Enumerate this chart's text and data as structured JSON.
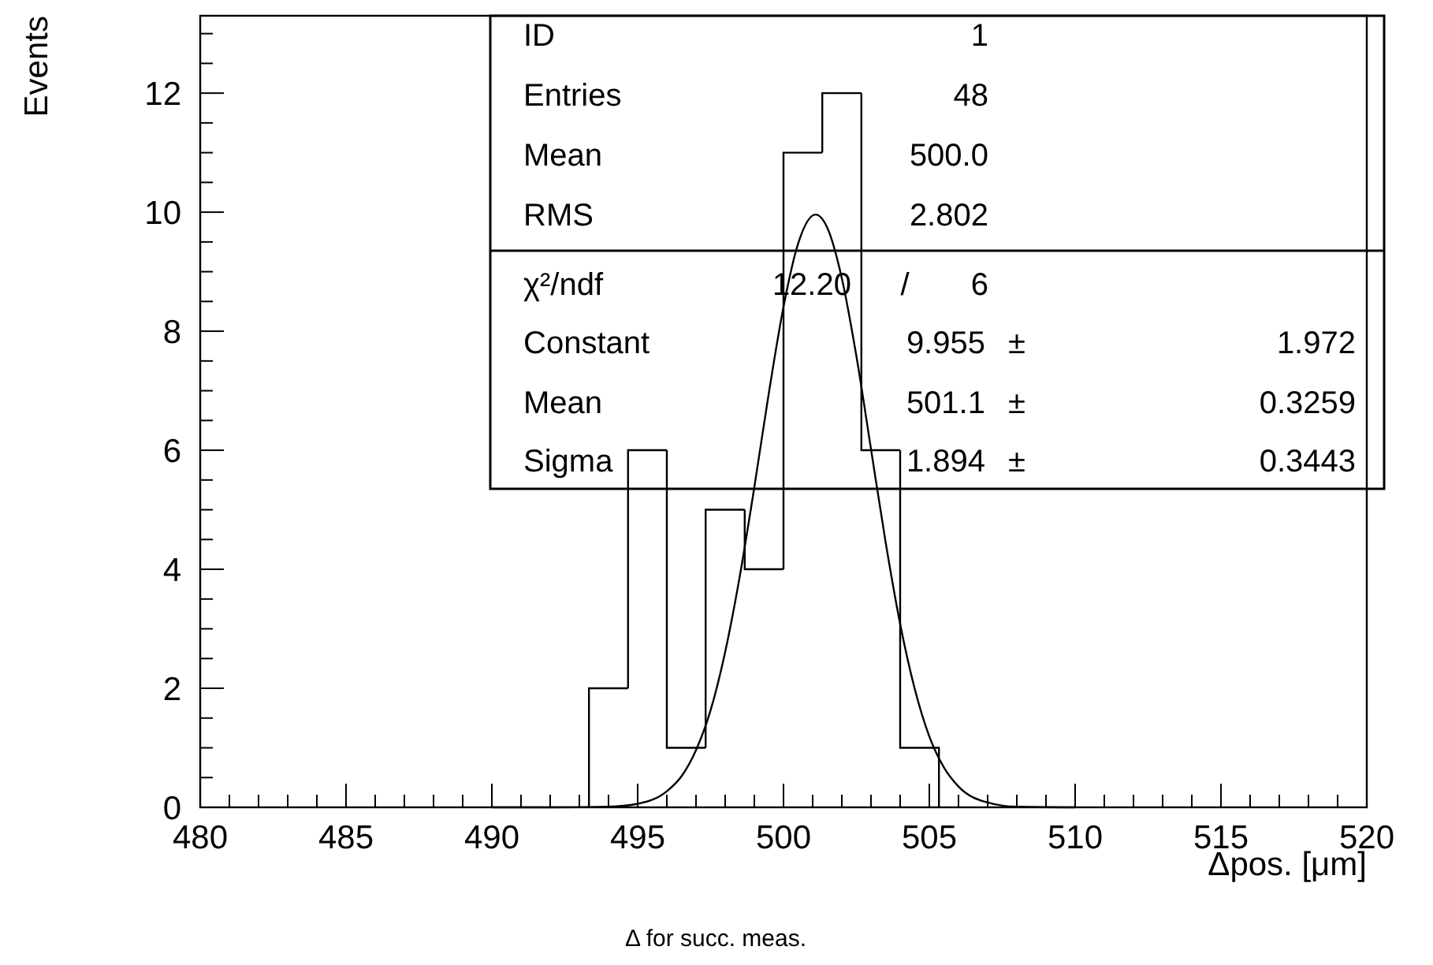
{
  "chart_data": {
    "type": "histogram",
    "xlabel": "Δpos. [μm]",
    "ylabel": "Events",
    "xlim": [
      480,
      520
    ],
    "ylim": [
      0,
      13.3
    ],
    "xticks": [
      480,
      {
        "value": 481,
        "label": null
      },
      {
        "value": 482,
        "label": null
      },
      {
        "value": 483,
        "label": null
      },
      {
        "value": 484,
        "label": null
      },
      485,
      {
        "value": 486,
        "label": null
      },
      {
        "value": 487,
        "label": null
      },
      {
        "value": 488,
        "label": null
      },
      {
        "value": 489,
        "label": null
      },
      490,
      {
        "value": 491,
        "label": null
      },
      {
        "value": 492,
        "label": null
      },
      {
        "value": 493,
        "label": null
      },
      {
        "value": 494,
        "label": null
      },
      495,
      {
        "value": 496,
        "label": null
      },
      {
        "value": 497,
        "label": null
      },
      {
        "value": 498,
        "label": null
      },
      {
        "value": 499,
        "label": null
      },
      500,
      {
        "value": 501,
        "label": null
      },
      {
        "value": 502,
        "label": null
      },
      {
        "value": 503,
        "label": null
      },
      {
        "value": 504,
        "label": null
      },
      505,
      {
        "value": 506,
        "label": null
      },
      {
        "value": 507,
        "label": null
      },
      {
        "value": 508,
        "label": null
      },
      {
        "value": 509,
        "label": null
      },
      510,
      {
        "value": 511,
        "label": null
      },
      {
        "value": 512,
        "label": null
      },
      {
        "value": 513,
        "label": null
      },
      {
        "value": 514,
        "label": null
      },
      515,
      {
        "value": 516,
        "label": null
      },
      {
        "value": 517,
        "label": null
      },
      {
        "value": 518,
        "label": null
      },
      {
        "value": 519,
        "label": null
      },
      520
    ],
    "yticks": [
      0,
      {
        "value": 0.5,
        "label": null
      },
      {
        "value": 1,
        "label": null
      },
      {
        "value": 1.5,
        "label": null
      },
      2,
      {
        "value": 2.5,
        "label": null
      },
      {
        "value": 3,
        "label": null
      },
      {
        "value": 3.5,
        "label": null
      },
      4,
      {
        "value": 4.5,
        "label": null
      },
      {
        "value": 5,
        "label": null
      },
      {
        "value": 5.5,
        "label": null
      },
      6,
      {
        "value": 6.5,
        "label": null
      },
      {
        "value": 7,
        "label": null
      },
      {
        "value": 7.5,
        "label": null
      },
      8,
      {
        "value": 8.5,
        "label": null
      },
      {
        "value": 9,
        "label": null
      },
      {
        "value": 9.5,
        "label": null
      },
      10,
      {
        "value": 10.5,
        "label": null
      },
      {
        "value": 11,
        "label": null
      },
      {
        "value": 11.5,
        "label": null
      },
      12,
      {
        "value": 12.5,
        "label": null
      },
      {
        "value": 13,
        "label": null
      }
    ],
    "grid": false,
    "series": [
      {
        "color": "#000000",
        "bins": [
          493.33,
          494.67,
          496,
          497.33,
          498.67,
          500,
          501.33,
          502.67,
          504,
          505.33
        ],
        "values": [
          2,
          6,
          1,
          5,
          4,
          11,
          12,
          6,
          1
        ]
      },
      {
        "type": "line",
        "color": "#000000",
        "x": [
          490,
          492,
          494,
          495,
          496,
          496.5,
          497,
          497.5,
          498,
          498.5,
          499,
          499.5,
          500,
          500.5,
          501.1,
          501.5,
          502,
          502.5,
          503,
          503.5,
          504,
          504.5,
          505,
          505.5,
          506,
          507,
          508,
          510
        ],
        "values": [
          0,
          0,
          0.01,
          0.06,
          0.27,
          0.52,
          0.96,
          1.63,
          2.61,
          3.88,
          5.38,
          6.97,
          8.41,
          9.47,
          9.96,
          9.74,
          8.89,
          7.58,
          6.02,
          4.46,
          3.08,
          1.99,
          1.19,
          0.67,
          0.35,
          0.08,
          0.01,
          0
        ]
      }
    ],
    "annotations": [
      "ID",
      "1",
      "Entries",
      "48",
      "Mean",
      "500.0",
      "RMS",
      "2.802",
      "χ²/ndf",
      "12.20",
      "/",
      "6",
      "Constant",
      "9.955",
      "±",
      "1.972",
      "Mean",
      "501.1",
      "±",
      "0.3259",
      "Sigma",
      "1.894",
      "±",
      "0.3443",
      "Δ for succ. meas."
    ]
  }
}
